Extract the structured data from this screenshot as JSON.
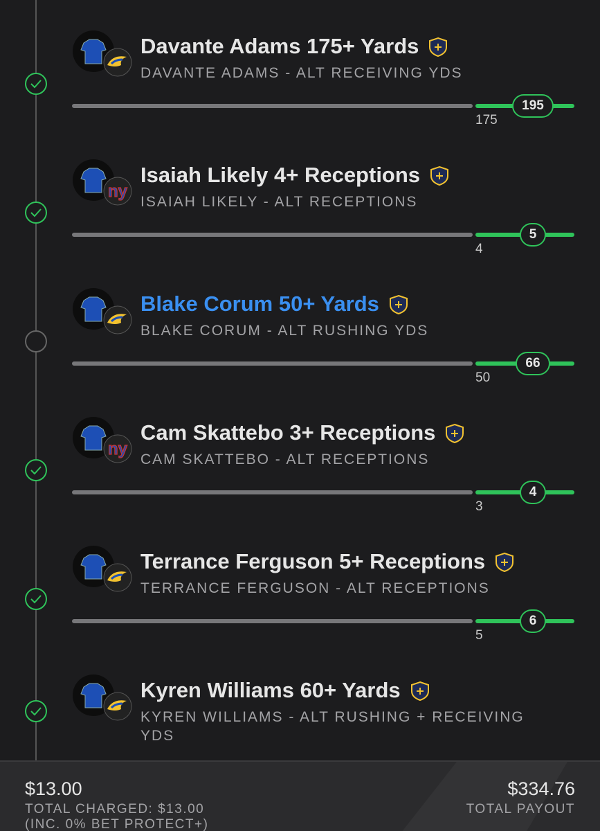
{
  "legs": [
    {
      "title": "Davante Adams 175+ Yards",
      "subtitle": "DAVANTE ADAMS - ALT RECEIVING YDS",
      "threshold": 175,
      "result": 195,
      "team": "rams",
      "checked": true,
      "highlighted": false
    },
    {
      "title": "Isaiah Likely 4+ Receptions",
      "subtitle": "ISAIAH LIKELY - ALT RECEPTIONS",
      "threshold": 4,
      "result": 5,
      "team": "giants",
      "checked": true,
      "highlighted": false
    },
    {
      "title": "Blake Corum 50+ Yards",
      "subtitle": "BLAKE CORUM - ALT RUSHING YDS",
      "threshold": 50,
      "result": 66,
      "team": "rams",
      "checked": false,
      "highlighted": true
    },
    {
      "title": "Cam Skattebo 3+ Receptions",
      "subtitle": "CAM SKATTEBO - ALT RECEPTIONS",
      "threshold": 3,
      "result": 4,
      "team": "giants",
      "checked": true,
      "highlighted": false
    },
    {
      "title": "Terrance Ferguson 5+ Receptions",
      "subtitle": "TERRANCE FERGUSON - ALT RECEPTIONS",
      "threshold": 5,
      "result": 6,
      "team": "rams",
      "checked": true,
      "highlighted": false
    },
    {
      "title": "Kyren Williams 60+ Yards",
      "subtitle": "KYREN WILLIAMS - ALT RUSHING + RECEIVING YDS",
      "team": "rams",
      "checked": true,
      "highlighted": false
    }
  ],
  "footer": {
    "stake": "$13.00",
    "charged": "TOTAL CHARGED: $13.00",
    "note": "(INC. 0% BET PROTECT+)",
    "payout": "$334.76",
    "payout_label": "TOTAL PAYOUT"
  }
}
